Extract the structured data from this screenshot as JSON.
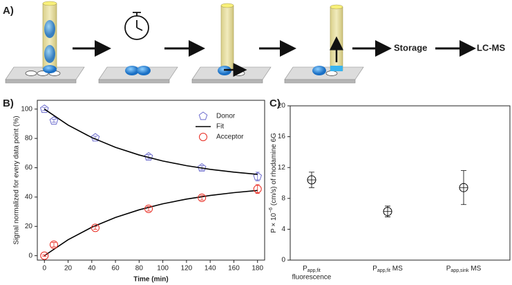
{
  "panels": [
    "A)",
    "B)",
    "C)"
  ],
  "diagram": {
    "steps": [
      "Storage",
      "LC-MS"
    ]
  },
  "chart_data": [
    {
      "type": "scatter",
      "xlabel": "Time (min)",
      "ylabel": "Signal normalized for every data point (%)",
      "x": [
        0,
        8,
        43,
        88,
        133,
        180
      ],
      "xlim": [
        -6,
        186
      ],
      "xticks": [
        0,
        20,
        40,
        60,
        80,
        100,
        120,
        140,
        160,
        180
      ],
      "ylim": [
        -3,
        106
      ],
      "yticks": [
        0,
        20,
        40,
        60,
        80,
        100
      ],
      "legend": "upper right",
      "series": [
        {
          "name": "Donor",
          "color": "#6a6acd",
          "marker": "pentagon",
          "values": [
            100,
            92,
            80.5,
            67.5,
            60,
            54
          ],
          "errors": [
            1,
            1,
            1,
            1.5,
            1.5,
            3
          ]
        },
        {
          "name": "Fit",
          "color": "#000000",
          "x": [
            0,
            20,
            40,
            60,
            80,
            100,
            120,
            140,
            160,
            180
          ],
          "curves": [
            [
              100,
              89.1,
              80.6,
              73.9,
              68.7,
              64.6,
              61.4,
              58.9,
              57.0,
              55.5
            ],
            [
              0,
              10.9,
              19.4,
              26.1,
              31.3,
              35.4,
              38.6,
              41.1,
              43.0,
              44.5
            ]
          ]
        },
        {
          "name": "Acceptor",
          "color": "#e8281e",
          "marker": "circle",
          "values": [
            0,
            7.5,
            19,
            32,
            39.5,
            45.5
          ],
          "errors": [
            0.5,
            1.5,
            1,
            1.5,
            1.5,
            3
          ]
        }
      ]
    },
    {
      "type": "dot",
      "ylabel": {
        "pre": "P × 10",
        "sup": "−6",
        "post": " (cm/s) of rhodamine 6G"
      },
      "categories": [
        {
          "base": "P",
          "sub": "app,fit",
          "line2": "fluorescence"
        },
        {
          "base": "P",
          "sub": "app,fit",
          "suffix": " MS"
        },
        {
          "base": "P",
          "sub": "app,sink",
          "suffix": " MS"
        }
      ],
      "values": [
        10.4,
        6.3,
        9.4
      ],
      "errors": [
        1.0,
        0.7,
        2.2
      ],
      "color": "#000000",
      "ylim": [
        0,
        20
      ],
      "yticks": [
        0,
        4,
        8,
        12,
        16,
        20
      ]
    }
  ]
}
